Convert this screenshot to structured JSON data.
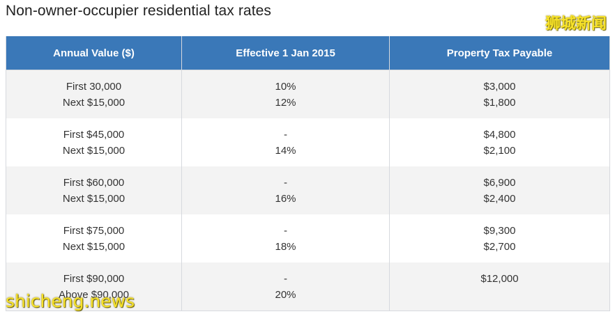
{
  "title": "Non-owner-occupier residential tax rates",
  "watermark_top": "狮城新闻",
  "watermark_bottom": "shicheng.news",
  "table": {
    "headers": [
      "Annual Value ($)",
      "Effective 1 Jan 2015",
      "Property Tax Payable"
    ],
    "rows": [
      {
        "annual_value": [
          "First 30,000",
          "Next $15,000"
        ],
        "rate": [
          "10%",
          "12%"
        ],
        "tax_payable": [
          "$3,000",
          "$1,800"
        ]
      },
      {
        "annual_value": [
          "First $45,000",
          "Next $15,000"
        ],
        "rate": [
          "-",
          "14%"
        ],
        "tax_payable": [
          "$4,800",
          "$2,100"
        ]
      },
      {
        "annual_value": [
          "First $60,000",
          "Next $15,000"
        ],
        "rate": [
          "-",
          "16%"
        ],
        "tax_payable": [
          "$6,900",
          "$2,400"
        ]
      },
      {
        "annual_value": [
          "First $75,000",
          "Next $15,000"
        ],
        "rate": [
          "-",
          "18%"
        ],
        "tax_payable": [
          "$9,300",
          "$2,700"
        ]
      },
      {
        "annual_value": [
          "First $90,000",
          "Above $90,000"
        ],
        "rate": [
          "-",
          "20%"
        ],
        "tax_payable": [
          "$12,000",
          ""
        ]
      }
    ]
  }
}
